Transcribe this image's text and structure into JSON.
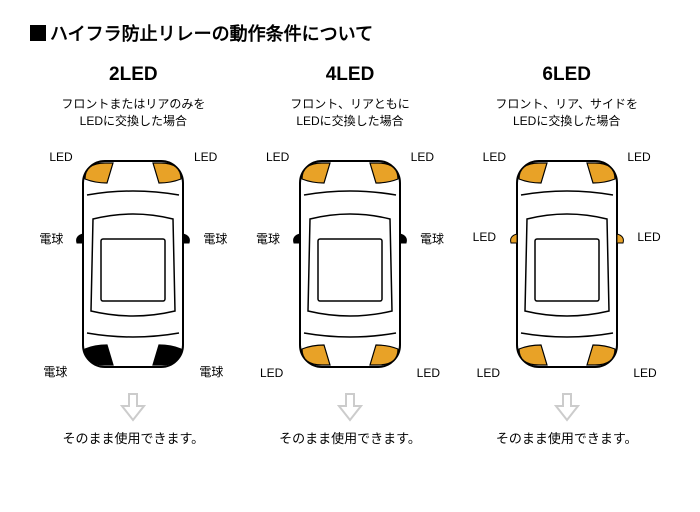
{
  "title": "ハイフラ防止リレーの動作条件について",
  "led_color": "#e8a227",
  "bulb_color": "#000000",
  "outline_color": "#000000",
  "arrow_color": "#cccccc",
  "background": "#ffffff",
  "columns": [
    {
      "heading": "2LED",
      "sub1": "フロントまたはリアのみを",
      "sub2": "LEDに交換した場合",
      "labels": {
        "fl": "LED",
        "fr": "LED",
        "ml": "電球",
        "mr": "電球",
        "rl": "電球",
        "rr": "電球"
      },
      "corner_fills": {
        "fl": "led",
        "fr": "led",
        "rl": "bulb",
        "rr": "bulb"
      },
      "side_markers": true,
      "side_led": false,
      "footer": "そのまま使用できます。"
    },
    {
      "heading": "4LED",
      "sub1": "フロント、リアともに",
      "sub2": "LEDに交換した場合",
      "labels": {
        "fl": "LED",
        "fr": "LED",
        "ml": "電球",
        "mr": "電球",
        "rl": "LED",
        "rr": "LED"
      },
      "corner_fills": {
        "fl": "led",
        "fr": "led",
        "rl": "led",
        "rr": "led"
      },
      "side_markers": true,
      "side_led": false,
      "footer": "そのまま使用できます。"
    },
    {
      "heading": "6LED",
      "sub1": "フロント、リア、サイドを",
      "sub2": "LEDに交換した場合",
      "labels": {
        "fl": "LED",
        "fr": "LED",
        "ml": "LED",
        "mr": "LED",
        "rl": "LED",
        "rr": "LED"
      },
      "corner_fills": {
        "fl": "led",
        "fr": "led",
        "rl": "led",
        "rr": "led"
      },
      "side_markers": true,
      "side_led": true,
      "footer": "そのまま使用できます。"
    }
  ]
}
